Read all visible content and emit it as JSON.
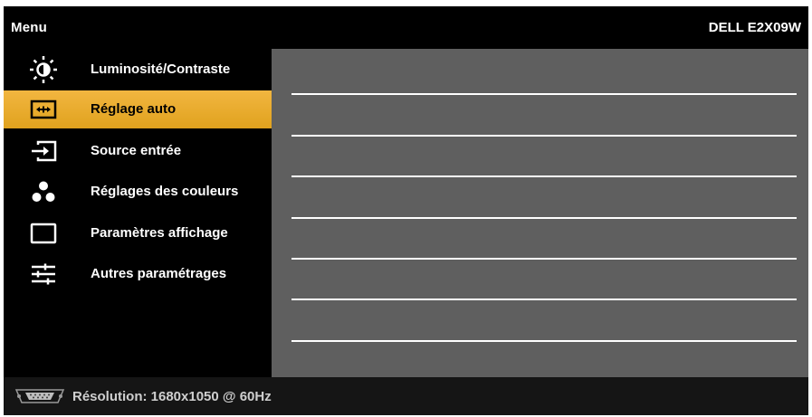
{
  "header": {
    "title": "Menu",
    "model": "DELL E2X09W"
  },
  "menu": {
    "items": [
      {
        "label": "Luminosité/Contraste",
        "icon": "brightness-icon",
        "active": false
      },
      {
        "label": "Réglage auto",
        "icon": "auto-adjust-icon",
        "active": true
      },
      {
        "label": "Source entrée",
        "icon": "input-source-icon",
        "active": false
      },
      {
        "label": "Réglages des couleurs",
        "icon": "color-dots-icon",
        "active": false
      },
      {
        "label": "Paramètres affichage",
        "icon": "display-rectangle-icon",
        "active": false
      },
      {
        "label": "Autres paramétrages",
        "icon": "sliders-icon",
        "active": false
      }
    ]
  },
  "footer": {
    "connector_icon": "vga-connector-icon",
    "resolution": "Résolution: 1680x1050 @ 60Hz"
  },
  "colors": {
    "background": "#000000",
    "content_panel": "#5f5f5f",
    "active_highlight": "#e8aa28",
    "footer": "#151515",
    "text": "#ffffff"
  }
}
